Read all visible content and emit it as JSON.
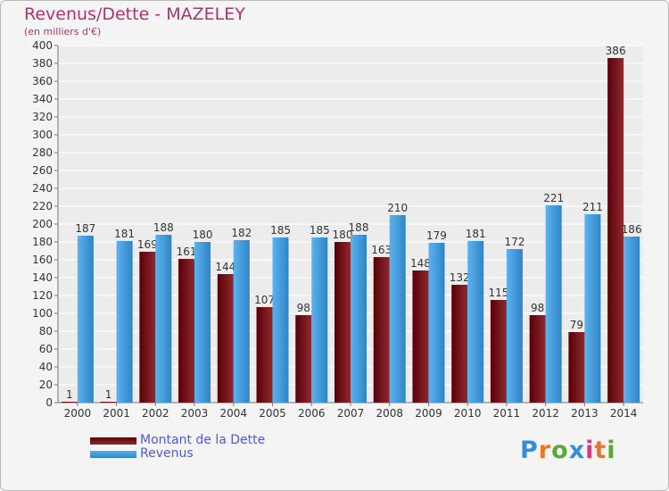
{
  "chart_data": {
    "type": "bar",
    "title": "Revenus/Dette - MAZELEY",
    "subtitle": "(en milliers d'€)",
    "categories": [
      "2000",
      "2001",
      "2002",
      "2003",
      "2004",
      "2005",
      "2006",
      "2007",
      "2008",
      "2009",
      "2010",
      "2011",
      "2012",
      "2013",
      "2014"
    ],
    "series": [
      {
        "name": "Montant de la Dette",
        "color": "#7a1418",
        "values": [
          1,
          1,
          169,
          161,
          144,
          107,
          98,
          180,
          163,
          148,
          132,
          115,
          98,
          79,
          386
        ]
      },
      {
        "name": "Revenus",
        "color": "#3d9ae0",
        "values": [
          187,
          181,
          188,
          180,
          182,
          185,
          185,
          188,
          210,
          179,
          181,
          172,
          221,
          211,
          186
        ]
      }
    ],
    "ylim": [
      0,
      400
    ],
    "yticks": [
      0,
      20,
      40,
      60,
      80,
      100,
      120,
      140,
      160,
      180,
      200,
      220,
      240,
      260,
      280,
      300,
      320,
      340,
      360,
      380,
      400
    ],
    "grid": true,
    "legend_position": "bottom-left"
  },
  "logo": {
    "text": "Proxiti"
  }
}
